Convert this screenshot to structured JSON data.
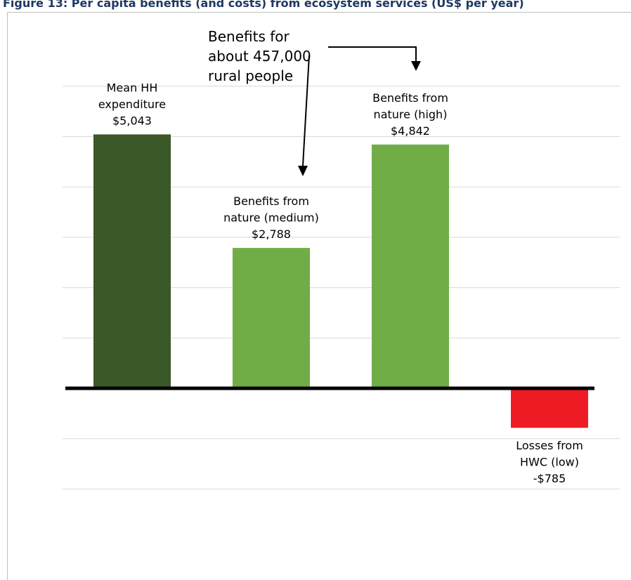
{
  "figure": {
    "title": "Figure 13: Per capita benefits (and costs) from ecosystem services (US$ per year)"
  },
  "callout": {
    "text": "Benefits for\nabout 457,000\nrural people"
  },
  "colors": {
    "expenditure": "#3b5828",
    "benefits": "#70ad47",
    "losses": "#ed1c24",
    "gridline": "#d9d9d9",
    "axis": "#000000"
  },
  "chart_data": {
    "type": "bar",
    "title": "",
    "xlabel": "",
    "ylabel": "",
    "ylim": [
      -2000,
      6500
    ],
    "gridlines": true,
    "grid_step": 1000,
    "categories": [
      "Mean HH expenditure",
      "Benefits from nature (medium)",
      "Benefits from nature (high)",
      "Losses from HWC (low)"
    ],
    "values": [
      5043,
      2788,
      4842,
      -785
    ],
    "data_labels": [
      [
        "Mean HH",
        "expenditure",
        "$5,043"
      ],
      [
        "Benefits from",
        "nature (medium)",
        "$2,788"
      ],
      [
        "Benefits from",
        "nature (high)",
        "$4,842"
      ],
      [
        "Losses from",
        "HWC (low)",
        "-$785"
      ]
    ],
    "bar_colors": [
      "#3b5828",
      "#70ad47",
      "#70ad47",
      "#ed1c24"
    ]
  }
}
